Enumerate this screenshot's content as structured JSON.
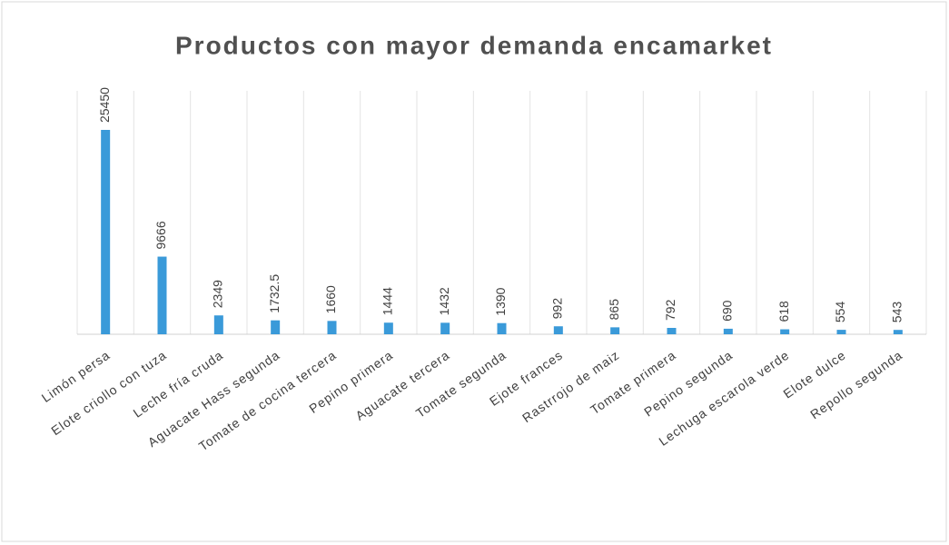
{
  "chart_data": {
    "type": "bar",
    "title": "Productos con mayor demanda encamarket",
    "categories": [
      "Limón persa",
      "Elote criollo con tuza",
      "Leche fría cruda",
      "Aguacate Hass segunda",
      "Tomate de cocina tercera",
      "Pepino primera",
      "Aguacate tercera",
      "Tomate segunda",
      "Ejote frances",
      "Rastrrojo de maiz",
      "Tomate primera",
      "Pepino segunda",
      "Lechuga escarola verde",
      "Elote dulce",
      "Repollo segunda"
    ],
    "values": [
      25450,
      9666,
      2349,
      1732.5,
      1660,
      1444,
      1432,
      1390,
      992,
      865,
      792,
      690,
      618,
      554,
      543
    ],
    "color": "#3a9ad9",
    "grid": true
  }
}
